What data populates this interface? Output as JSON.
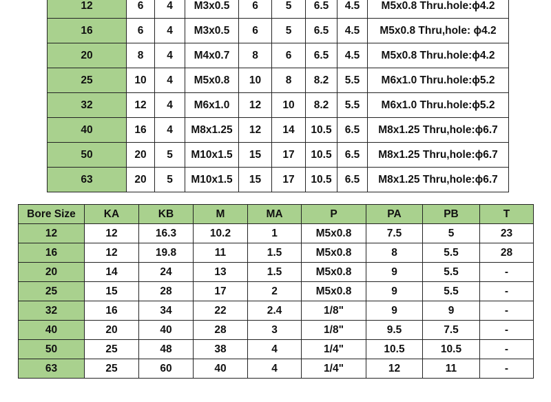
{
  "colors": {
    "header_green": "#a9d18e"
  },
  "table_top": {
    "rows": [
      [
        "12",
        "6",
        "4",
        "M3x0.5",
        "6",
        "5",
        "6.5",
        "4.5",
        "M5x0.8 Thru.hole:ϕ4.2"
      ],
      [
        "16",
        "6",
        "4",
        "M3x0.5",
        "6",
        "5",
        "6.5",
        "4.5",
        "M5x0.8 Thru,hole: ϕ4.2"
      ],
      [
        "20",
        "8",
        "4",
        "M4x0.7",
        "8",
        "6",
        "6.5",
        "4.5",
        "M5x0.8 Thru.hole:ϕ4.2"
      ],
      [
        "25",
        "10",
        "4",
        "M5x0.8",
        "10",
        "8",
        "8.2",
        "5.5",
        "M6x1.0 Thru.hole:ϕ5.2"
      ],
      [
        "32",
        "12",
        "4",
        "M6x1.0",
        "12",
        "10",
        "8.2",
        "5.5",
        "M6x1.0 Thru.hole:ϕ5.2"
      ],
      [
        "40",
        "16",
        "4",
        "M8x1.25",
        "12",
        "14",
        "10.5",
        "6.5",
        "M8x1.25 Thru,hole:ϕ6.7"
      ],
      [
        "50",
        "20",
        "5",
        "M10x1.5",
        "15",
        "17",
        "10.5",
        "6.5",
        "M8x1.25 Thru,hole:ϕ6.7"
      ],
      [
        "63",
        "20",
        "5",
        "M10x1.5",
        "15",
        "17",
        "10.5",
        "6.5",
        "M8x1.25 Thru,hole:ϕ6.7"
      ]
    ]
  },
  "table_bottom": {
    "headers": [
      "Bore Size",
      "KA",
      "KB",
      "M",
      "MA",
      "P",
      "PA",
      "PB",
      "T"
    ],
    "rows": [
      [
        "12",
        "12",
        "16.3",
        "10.2",
        "1",
        "M5x0.8",
        "7.5",
        "5",
        "23"
      ],
      [
        "16",
        "12",
        "19.8",
        "11",
        "1.5",
        "M5x0.8",
        "8",
        "5.5",
        "28"
      ],
      [
        "20",
        "14",
        "24",
        "13",
        "1.5",
        "M5x0.8",
        "9",
        "5.5",
        "-"
      ],
      [
        "25",
        "15",
        "28",
        "17",
        "2",
        "M5x0.8",
        "9",
        "5.5",
        "-"
      ],
      [
        "32",
        "16",
        "34",
        "22",
        "2.4",
        "1/8\"",
        "9",
        "9",
        "-"
      ],
      [
        "40",
        "20",
        "40",
        "28",
        "3",
        "1/8\"",
        "9.5",
        "7.5",
        "-"
      ],
      [
        "50",
        "25",
        "48",
        "38",
        "4",
        "1/4\"",
        "10.5",
        "10.5",
        "-"
      ],
      [
        "63",
        "25",
        "60",
        "40",
        "4",
        "1/4\"",
        "12",
        "11",
        "-"
      ]
    ]
  }
}
